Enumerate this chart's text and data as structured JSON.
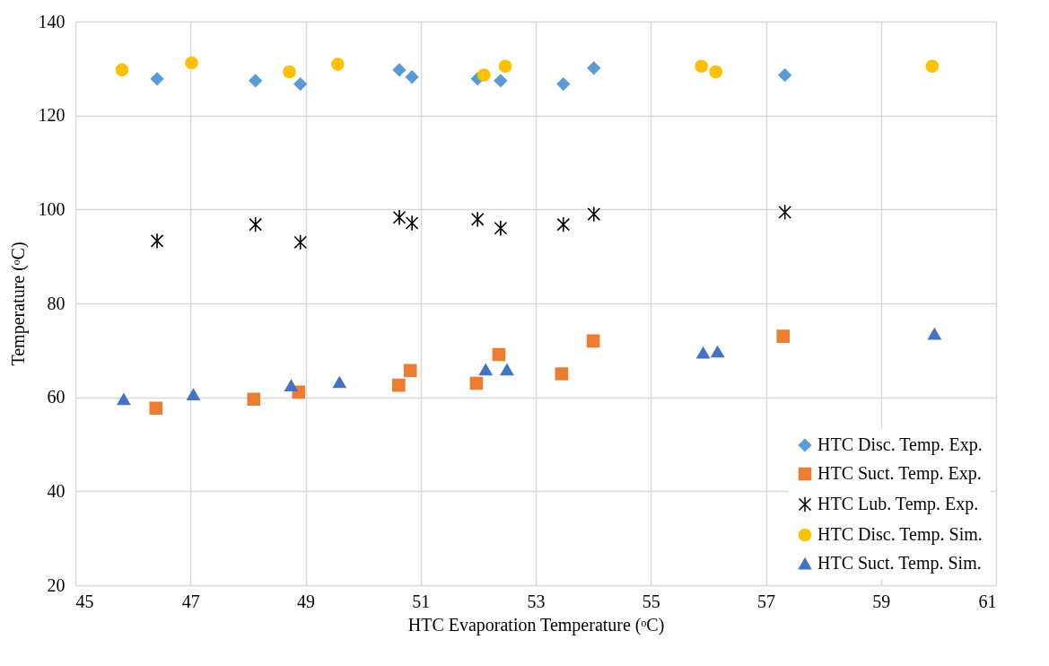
{
  "chart_data": {
    "type": "scatter",
    "xlabel": "HTC Evaporation Temperature (ᵒC)",
    "ylabel": "Temperature (ᵒC)",
    "xlim": [
      45,
      61
    ],
    "xticks": [
      45,
      47,
      49,
      51,
      53,
      55,
      57,
      59,
      61
    ],
    "ylim": [
      20,
      140
    ],
    "yticks": [
      20,
      40,
      60,
      80,
      100,
      120,
      140
    ],
    "grid": true,
    "legend": "bottom right",
    "series": [
      {
        "name": "HTC Disc. Temp. Exp.",
        "color": "#5b9bd5",
        "marker": "diamond",
        "x": [
          46.42,
          48.13,
          48.91,
          50.63,
          50.85,
          51.99,
          52.39,
          53.48,
          54.01,
          57.33
        ],
        "values": [
          127.8,
          127.4,
          126.7,
          129.7,
          128.2,
          127.8,
          127.4,
          126.7,
          130.1,
          128.6
        ]
      },
      {
        "name": "HTC Suct. Temp. Exp.",
        "color": "#ed7d31",
        "marker": "square",
        "x": [
          46.4,
          48.1,
          48.88,
          50.62,
          50.82,
          51.97,
          52.36,
          53.45,
          54.0,
          57.3
        ],
        "values": [
          57.7,
          59.6,
          61.1,
          62.6,
          65.7,
          63.0,
          69.1,
          65.0,
          72.0,
          73.0
        ]
      },
      {
        "name": "HTC Lub. Temp. Exp.",
        "color": "#000000",
        "marker": "cross",
        "x": [
          46.42,
          48.13,
          48.91,
          50.63,
          50.85,
          51.99,
          52.39,
          53.48,
          54.01,
          57.33
        ],
        "values": [
          93.3,
          96.8,
          93.0,
          98.3,
          97.1,
          97.9,
          96.0,
          96.8,
          99.0,
          99.4
        ]
      },
      {
        "name": "HTC Disc. Temp. Sim.",
        "color": "#ffc000",
        "marker": "circle",
        "x": [
          45.81,
          47.02,
          48.72,
          49.56,
          52.1,
          52.47,
          55.88,
          56.13,
          59.89
        ],
        "values": [
          129.7,
          131.2,
          129.3,
          130.9,
          128.6,
          130.5,
          130.5,
          129.3,
          130.5
        ]
      },
      {
        "name": "HTC Suct. Temp. Sim.",
        "color": "#4472c4",
        "marker": "triangle",
        "x": [
          45.84,
          47.05,
          48.75,
          49.59,
          52.13,
          52.5,
          55.91,
          56.16,
          59.93
        ],
        "values": [
          59.6,
          60.6,
          62.5,
          63.2,
          65.9,
          65.9,
          69.5,
          69.7,
          73.5
        ]
      }
    ]
  }
}
